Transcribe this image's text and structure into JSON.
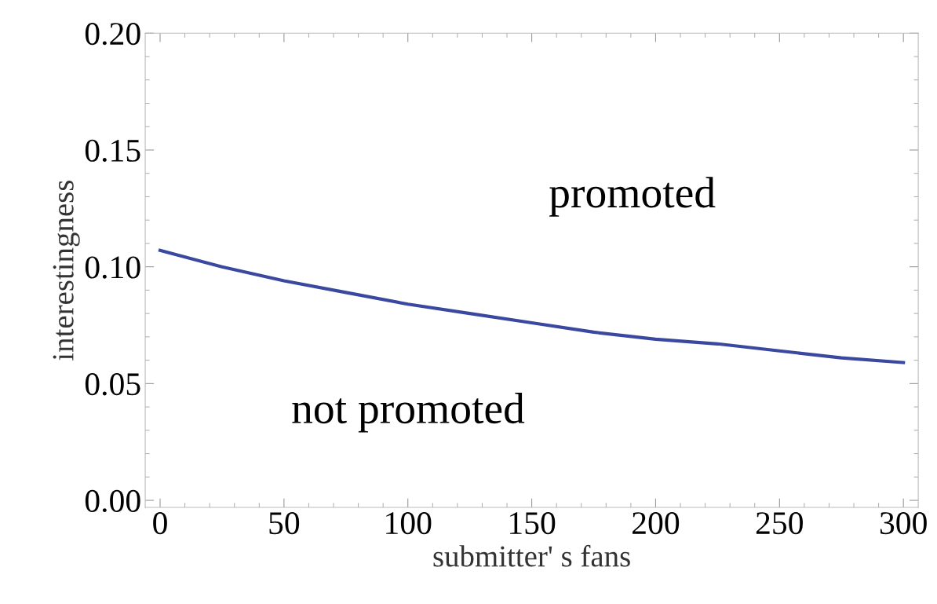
{
  "chart_data": {
    "type": "line",
    "xlabel": "submitter' s fans",
    "ylabel": "interestingness",
    "x": [
      0,
      25,
      50,
      75,
      100,
      125,
      150,
      175,
      200,
      225,
      250,
      275,
      300
    ],
    "series": [
      {
        "color": "#3a48a0",
        "values": [
          0.107,
          0.1,
          0.094,
          0.089,
          0.084,
          0.08,
          0.076,
          0.072,
          0.069,
          0.067,
          0.064,
          0.061,
          0.059
        ]
      }
    ],
    "xlim": [
      -6,
      306
    ],
    "ylim": [
      -0.003,
      0.2
    ],
    "xticks": [
      0,
      50,
      100,
      150,
      200,
      250,
      300
    ],
    "yticks": [
      {
        "value": 0,
        "label": "0.00"
      },
      {
        "value": 0.05,
        "label": "0.05"
      },
      {
        "value": 0.1,
        "label": "0.10"
      },
      {
        "value": 0.15,
        "label": "0.15"
      },
      {
        "value": 0.2,
        "label": "0.20"
      }
    ],
    "annotations": [
      "promoted",
      "not promoted"
    ],
    "grid": false,
    "legend": false,
    "marker": "none",
    "line_style": "solid"
  }
}
